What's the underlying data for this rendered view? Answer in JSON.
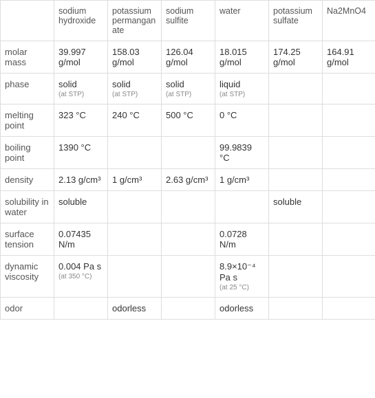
{
  "colors": {
    "border": "#dddddd",
    "text": "#333333",
    "label": "#555555",
    "sublabel": "#888888",
    "background": "#ffffff"
  },
  "typography": {
    "font_family": "Arial, Helvetica, sans-serif",
    "base_fontsize": 13,
    "sublabel_fontsize": 10
  },
  "columns": [
    "",
    "sodium hydroxide",
    "potassium permanganate",
    "sodium sulfite",
    "water",
    "potassium sulfate",
    "Na2MnO4"
  ],
  "rows": [
    {
      "label": "molar mass",
      "values": [
        "39.997 g/mol",
        "158.03 g/mol",
        "126.04 g/mol",
        "18.015 g/mol",
        "174.25 g/mol",
        "164.91 g/mol"
      ]
    },
    {
      "label": "phase",
      "values": [
        {
          "main": "solid",
          "sub": "(at STP)"
        },
        {
          "main": "solid",
          "sub": "(at STP)"
        },
        {
          "main": "solid",
          "sub": "(at STP)"
        },
        {
          "main": "liquid",
          "sub": "(at STP)"
        },
        "",
        ""
      ]
    },
    {
      "label": "melting point",
      "values": [
        "323 °C",
        "240 °C",
        "500 °C",
        "0 °C",
        "",
        ""
      ]
    },
    {
      "label": "boiling point",
      "values": [
        "1390 °C",
        "",
        "",
        "99.9839 °C",
        "",
        ""
      ]
    },
    {
      "label": "density",
      "values": [
        "2.13 g/cm³",
        "1 g/cm³",
        "2.63 g/cm³",
        "1 g/cm³",
        "",
        ""
      ]
    },
    {
      "label": "solubility in water",
      "values": [
        "soluble",
        "",
        "",
        "",
        "soluble",
        ""
      ]
    },
    {
      "label": "surface tension",
      "values": [
        "0.07435 N/m",
        "",
        "",
        "0.0728 N/m",
        "",
        ""
      ]
    },
    {
      "label": "dynamic viscosity",
      "values": [
        {
          "main": "0.004 Pa s",
          "sub": "(at 350 °C)"
        },
        "",
        "",
        {
          "main": "8.9×10⁻⁴ Pa s",
          "sub": "(at 25 °C)"
        },
        "",
        ""
      ]
    },
    {
      "label": "odor",
      "values": [
        "",
        "odorless",
        "",
        "odorless",
        "",
        ""
      ]
    }
  ]
}
